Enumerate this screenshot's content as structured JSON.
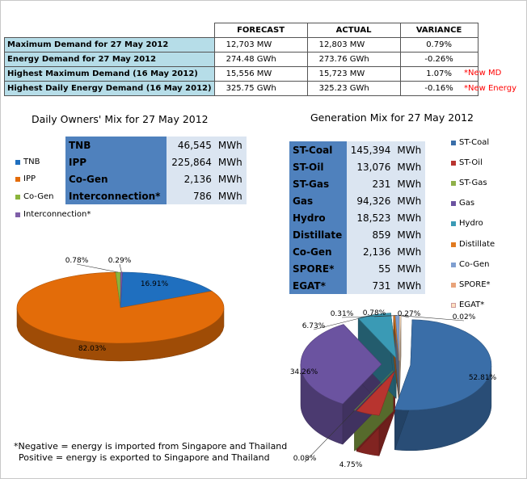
{
  "summary": {
    "headers": [
      "FORECAST",
      "ACTUAL",
      "VARIANCE"
    ],
    "rows": [
      {
        "label": "Maximum Demand for 27 May 2012",
        "forecast": "12,703  MW",
        "actual": "12,803  MW",
        "variance": "0.79%"
      },
      {
        "label": "Energy Demand for 27 May 2012",
        "forecast": "274.48  GWh",
        "actual": "273.76  GWh",
        "variance": "-0.26%"
      },
      {
        "label": "Highest Maximum Demand (16 May 2012)",
        "forecast": "15,556  MW",
        "actual": "15,723  MW",
        "variance": "1.07%"
      },
      {
        "label": "Highest Daily Energy Demand (16 May 2012)",
        "forecast": "325.75  GWh",
        "actual": "325.23  GWh",
        "variance": "-0.16%"
      }
    ],
    "notes": [
      "*New MD",
      "*New Energy"
    ]
  },
  "owners_mix": {
    "title": "Daily Owners' Mix for 27 May 2012",
    "rows": [
      {
        "name": "TNB",
        "value": "46,545",
        "unit": "MWh"
      },
      {
        "name": "IPP",
        "value": "225,864",
        "unit": "MWh"
      },
      {
        "name": "Co-Gen",
        "value": "2,136",
        "unit": "MWh"
      },
      {
        "name": "Interconnection*",
        "value": "786",
        "unit": "MWh"
      }
    ],
    "legend": [
      "TNB",
      "IPP",
      "Co-Gen",
      "Interconnection*"
    ]
  },
  "generation_mix": {
    "title": "Generation Mix for 27 May 2012",
    "rows": [
      {
        "name": "ST-Coal",
        "value": "145,394",
        "unit": "MWh"
      },
      {
        "name": "ST-Oil",
        "value": "13,076",
        "unit": "MWh"
      },
      {
        "name": "ST-Gas",
        "value": "231",
        "unit": "MWh"
      },
      {
        "name": "Gas",
        "value": "94,326",
        "unit": "MWh"
      },
      {
        "name": "Hydro",
        "value": "18,523",
        "unit": "MWh"
      },
      {
        "name": "Distillate",
        "value": "859",
        "unit": "MWh"
      },
      {
        "name": "Co-Gen",
        "value": "2,136",
        "unit": "MWh"
      },
      {
        "name": "SPORE*",
        "value": "55",
        "unit": "MWh"
      },
      {
        "name": "EGAT*",
        "value": "731",
        "unit": "MWh"
      }
    ],
    "legend": [
      "ST-Coal",
      "ST-Oil",
      "ST-Gas",
      "Gas",
      "Hydro",
      "Distillate",
      "Co-Gen",
      "SPORE*",
      "EGAT*"
    ]
  },
  "chart_data": [
    {
      "type": "pie",
      "title": "Daily Owners' Mix for 27 May 2012",
      "categories": [
        "TNB",
        "IPP",
        "Co-Gen",
        "Interconnection*"
      ],
      "values": [
        16.91,
        82.03,
        0.78,
        0.29
      ],
      "labels": [
        "16.91%",
        "82.03%",
        "0.78%",
        "0.29%"
      ],
      "colors": [
        "#1f6fbf",
        "#e36c09",
        "#8bb43c",
        "#7f5fa8"
      ]
    },
    {
      "type": "pie",
      "title": "Generation Mix for 27 May 2012",
      "categories": [
        "ST-Coal",
        "ST-Oil",
        "ST-Gas",
        "Gas",
        "Hydro",
        "Distillate",
        "Co-Gen",
        "SPORE*",
        "EGAT*"
      ],
      "values": [
        52.81,
        4.75,
        0.08,
        34.26,
        6.73,
        0.31,
        0.78,
        0.02,
        0.27
      ],
      "labels": [
        "52.81%",
        "4.75%",
        "0.08%",
        "34.26%",
        "6.73%",
        "0.31%",
        "0.78%",
        "0.02%",
        "0.27%"
      ],
      "colors": [
        "#3a6ea8",
        "#b8342f",
        "#8fb04a",
        "#6b53a0",
        "#3a9ab5",
        "#e07a20",
        "#7f9fd0",
        "#e8a37a",
        "#ffe0c0"
      ]
    }
  ],
  "footnote": {
    "line1": "*Negative = energy is imported from Singapore and Thailand",
    "line2": "Positive = energy is exported to Singapore and Thailand"
  }
}
